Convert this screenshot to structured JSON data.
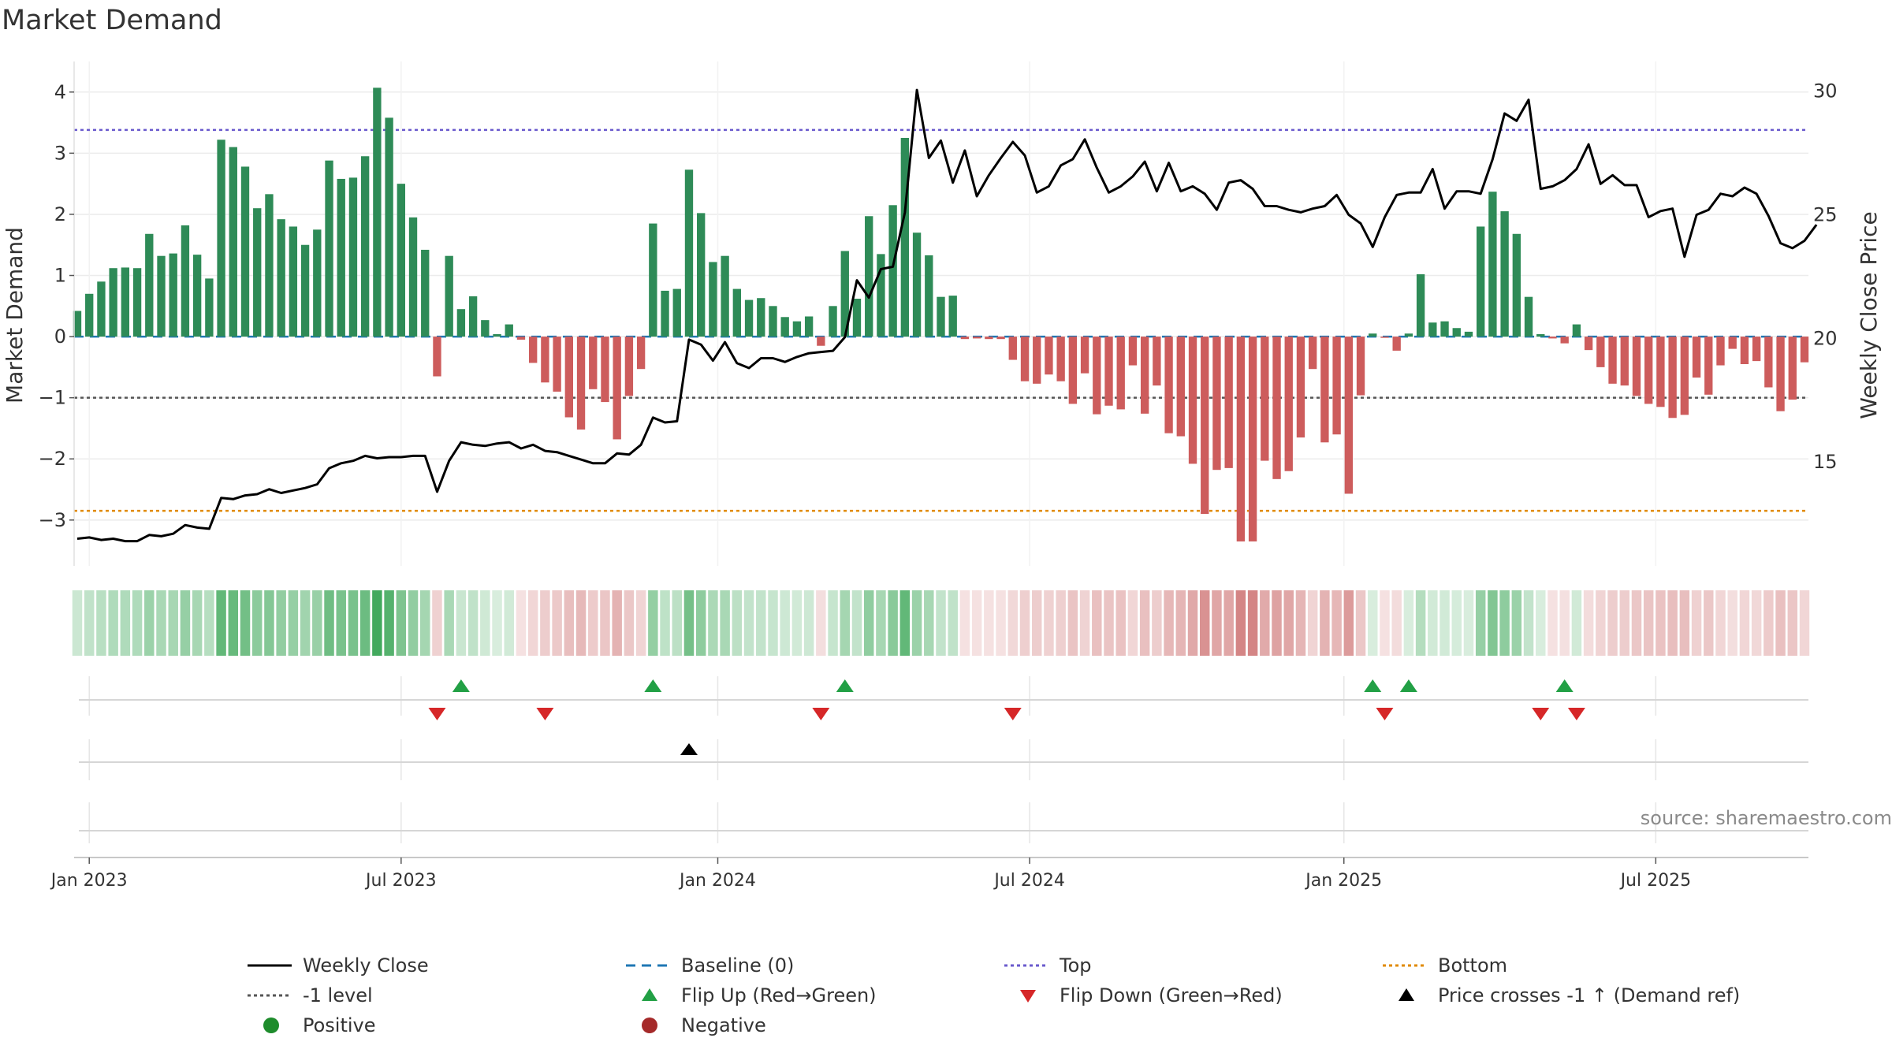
{
  "title": "Market Demand",
  "source_text": "source: sharemaestro.com",
  "colors": {
    "positive_bar": "#2e8b57",
    "negative_bar": "#cd5c5c",
    "price_line": "#000000",
    "baseline": "#1f77b4",
    "top_line": "#6a5acd",
    "bottom_line": "#e08a00",
    "minus1_line": "#555555",
    "flip_up": "#22a045",
    "flip_down": "#d62728",
    "cross": "#000000",
    "positive_dot": "#1e8c2c",
    "negative_dot": "#a52a2a"
  },
  "legend": [
    {
      "key": "weekly_close",
      "label": "Weekly Close"
    },
    {
      "key": "baseline",
      "label": "Baseline (0)"
    },
    {
      "key": "top",
      "label": "Top"
    },
    {
      "key": "bottom",
      "label": "Bottom"
    },
    {
      "key": "minus1",
      "label": "-1 level"
    },
    {
      "key": "flip_up",
      "label": "Flip Up (Red→Green)"
    },
    {
      "key": "flip_down",
      "label": "Flip Down (Green→Red)"
    },
    {
      "key": "cross",
      "label": "Price crosses -1 ↑ (Demand ref)"
    },
    {
      "key": "positive",
      "label": "Positive"
    },
    {
      "key": "negative",
      "label": "Negative"
    }
  ],
  "chart_data": {
    "type": "bar",
    "title": "Market Demand",
    "ylabel": "Market Demand",
    "y2label": "Weekly Close Price",
    "ylim": [
      -3.75,
      4.5
    ],
    "y2lim": [
      10.8,
      31.2
    ],
    "yticks": [
      -3,
      -2,
      -1,
      0,
      1,
      2,
      3,
      4
    ],
    "y2ticks": [
      15,
      20,
      25,
      30
    ],
    "x_dates": {
      "start": "2022-12-26",
      "weeks": 145
    },
    "xticks": [
      {
        "label": "Jan 2023",
        "week": 1
      },
      {
        "label": "Jul 2023",
        "week": 27
      },
      {
        "label": "Jan 2024",
        "week": 53.4
      },
      {
        "label": "Jul 2024",
        "week": 79.4
      },
      {
        "label": "Jan 2025",
        "week": 105.6
      },
      {
        "label": "Jul 2025",
        "week": 131.6
      }
    ],
    "levels": {
      "baseline": 0,
      "top": 3.38,
      "bottom": -2.85,
      "minus1": -1
    },
    "demand": [
      0.42,
      0.7,
      0.9,
      1.12,
      1.13,
      1.12,
      1.68,
      1.32,
      1.36,
      1.82,
      1.34,
      0.95,
      3.22,
      3.1,
      2.78,
      2.1,
      2.33,
      1.92,
      1.8,
      1.5,
      1.75,
      2.88,
      2.58,
      2.6,
      2.95,
      4.07,
      3.58,
      2.5,
      1.95,
      1.42,
      -0.65,
      1.32,
      0.45,
      0.66,
      0.27,
      0.04,
      0.2,
      -0.05,
      -0.43,
      -0.75,
      -0.9,
      -1.32,
      -1.52,
      -0.86,
      -1.07,
      -1.68,
      -0.97,
      -0.53,
      1.85,
      0.75,
      0.78,
      2.73,
      2.02,
      1.22,
      1.32,
      0.78,
      0.6,
      0.63,
      0.5,
      0.32,
      0.25,
      0.33,
      -0.15,
      0.5,
      1.4,
      0.62,
      1.97,
      1.35,
      2.15,
      3.25,
      1.7,
      1.33,
      0.65,
      0.67,
      -0.04,
      -0.03,
      -0.04,
      -0.04,
      -0.38,
      -0.73,
      -0.77,
      -0.62,
      -0.73,
      -1.1,
      -0.6,
      -1.27,
      -1.13,
      -1.19,
      -0.47,
      -1.26,
      -0.8,
      -1.58,
      -1.63,
      -2.08,
      -2.9,
      -2.18,
      -2.15,
      -3.35,
      -3.35,
      -2.03,
      -2.33,
      -2.2,
      -1.65,
      -0.53,
      -1.73,
      -1.6,
      -2.57,
      -0.96,
      0.05,
      -0.02,
      -0.23,
      0.05,
      1.02,
      0.23,
      0.25,
      0.14,
      0.08,
      1.8,
      2.37,
      2.05,
      1.68,
      0.65,
      0.04,
      -0.03,
      -0.11,
      0.2,
      -0.22,
      -0.5,
      -0.77,
      -0.8,
      -0.97,
      -1.1,
      -1.15,
      -1.33,
      -1.28,
      -0.67,
      -0.95,
      -0.47,
      -0.2,
      -0.45,
      -0.4,
      -0.83,
      -1.22,
      -1.03,
      -0.42
    ],
    "price": [
      11.9,
      11.95,
      11.85,
      11.9,
      11.8,
      11.8,
      12.05,
      12,
      12.1,
      12.45,
      12.35,
      12.3,
      13.55,
      13.5,
      13.65,
      13.7,
      13.9,
      13.75,
      13.85,
      13.95,
      14.1,
      14.75,
      14.95,
      15.05,
      15.25,
      15.15,
      15.2,
      15.2,
      15.25,
      15.25,
      13.8,
      15.05,
      15.8,
      15.7,
      15.65,
      15.75,
      15.8,
      15.55,
      15.7,
      15.45,
      15.4,
      15.25,
      15.1,
      14.95,
      14.95,
      15.35,
      15.3,
      15.7,
      16.8,
      16.6,
      16.65,
      19.95,
      19.75,
      19.1,
      19.85,
      19,
      18.8,
      19.2,
      19.2,
      19.05,
      19.25,
      19.4,
      19.45,
      19.5,
      20.05,
      22.35,
      21.65,
      22.8,
      22.9,
      25.1,
      30.05,
      27.3,
      28,
      26.3,
      27.6,
      25.75,
      26.6,
      27.3,
      27.95,
      27.4,
      25.9,
      26.15,
      27,
      27.25,
      28.05,
      26.9,
      25.9,
      26.15,
      26.55,
      27.15,
      25.95,
      27.1,
      25.95,
      26.15,
      25.85,
      25.2,
      26.3,
      26.4,
      26.05,
      25.35,
      25.35,
      25.2,
      25.1,
      25.25,
      25.35,
      25.8,
      25,
      24.65,
      23.7,
      24.9,
      25.8,
      25.9,
      25.9,
      26.85,
      25.25,
      25.95,
      25.95,
      25.85,
      27.25,
      29.1,
      28.8,
      29.65,
      26.05,
      26.15,
      26.4,
      26.85,
      27.85,
      26.25,
      26.6,
      26.2,
      26.2,
      24.9,
      25.15,
      25.25,
      23.3,
      25,
      25.2,
      25.85,
      25.75,
      26.1,
      25.85,
      24.95,
      23.85,
      23.65,
      23.95,
      24.6
    ],
    "heat_row": {
      "description": "weekly demand color strip (green = positive, red = negative, intensity = magnitude)"
    },
    "signals": {
      "flip_up_weeks": [
        32,
        48,
        64,
        108,
        111,
        124
      ],
      "flip_down_weeks": [
        30,
        39,
        62,
        78,
        109,
        122,
        125
      ],
      "cross_weeks": [
        51
      ]
    }
  }
}
